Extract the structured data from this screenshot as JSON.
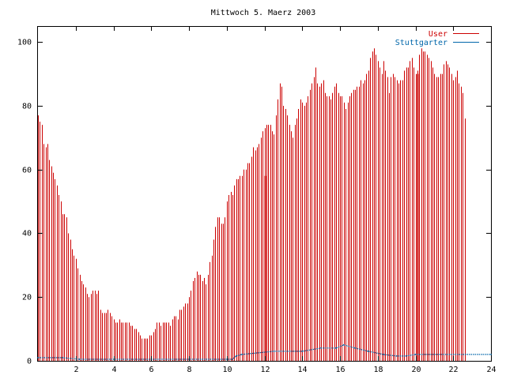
{
  "chart_data": {
    "type": "bar",
    "title": "Mittwoch 5. Maerz 2003",
    "xlabel": "",
    "ylabel": "",
    "xlim": [
      0,
      24
    ],
    "ylim": [
      0,
      105
    ],
    "x_ticks": [
      2,
      4,
      6,
      8,
      10,
      12,
      14,
      16,
      18,
      20,
      22,
      24
    ],
    "y_ticks": [
      0,
      20,
      40,
      60,
      80,
      100
    ],
    "grid": false,
    "legend_position": "top-right",
    "interval_hours": 0.1,
    "series": [
      {
        "name": "User",
        "color": "#cc0000",
        "style": "impulses",
        "values": [
          77,
          75,
          74,
          68,
          67,
          68,
          63,
          61,
          59,
          57,
          55,
          52,
          50,
          46,
          46,
          45,
          40,
          38,
          35,
          33,
          32,
          29,
          27,
          25,
          24,
          23,
          21,
          20,
          21,
          22,
          22,
          21,
          22,
          16,
          15,
          15,
          15,
          16,
          15,
          14,
          13,
          12,
          12,
          13,
          12,
          12,
          12,
          12,
          12,
          11,
          11,
          10,
          10,
          9,
          8,
          7,
          7,
          7,
          7,
          8,
          8,
          9,
          10,
          12,
          12,
          11,
          12,
          12,
          12,
          12,
          11,
          13,
          14,
          14,
          13,
          16,
          16,
          17,
          18,
          18,
          20,
          22,
          25,
          26,
          28,
          27,
          27,
          25,
          26,
          24,
          27,
          31,
          33,
          38,
          42,
          45,
          45,
          43,
          43,
          45,
          50,
          52,
          53,
          52,
          55,
          57,
          57,
          58,
          58,
          60,
          60,
          62,
          62,
          64,
          67,
          66,
          67,
          68,
          70,
          72,
          73,
          74,
          74,
          74,
          72,
          71,
          77,
          82,
          87,
          86,
          80,
          79,
          77,
          74,
          72,
          70,
          74,
          76,
          79,
          82,
          81,
          80,
          81,
          83,
          85,
          87,
          89,
          92,
          87,
          86,
          87,
          88,
          84,
          83,
          83,
          82,
          84,
          86,
          87,
          84,
          83,
          83,
          81,
          79,
          81,
          83,
          84,
          85,
          85,
          86,
          86,
          88,
          87,
          88,
          90,
          91,
          95,
          97,
          98,
          96,
          94,
          92,
          90,
          94,
          91,
          89,
          84,
          89,
          90,
          89,
          88,
          87,
          88,
          88,
          91,
          92,
          92,
          94,
          95,
          92,
          90,
          91,
          96,
          98,
          97,
          97,
          96,
          95,
          94,
          92,
          90,
          89,
          89,
          90,
          90,
          93,
          94,
          93,
          92,
          90,
          88,
          89,
          91,
          87,
          86,
          84,
          76
        ]
      },
      {
        "name": "Stuttgarter",
        "color": "#0066aa",
        "style": "points",
        "x": [
          0,
          1.3,
          2.2,
          10.3,
          10.5,
          10.8,
          12.5,
          14,
          15,
          15.8,
          16.2,
          16.8,
          17.5,
          18.3,
          19,
          19.5,
          20,
          24
        ],
        "values": [
          1,
          1,
          0.5,
          0.5,
          1.5,
          2,
          3,
          3,
          4,
          4,
          5,
          4,
          3,
          2,
          1.5,
          1.5,
          2,
          2
        ]
      }
    ],
    "spikes": {
      "name": "User",
      "color": "#cc0000",
      "x": [
        12,
        20.1
      ],
      "values": [
        58,
        90
      ]
    }
  }
}
